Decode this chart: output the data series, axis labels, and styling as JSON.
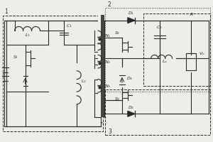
{
  "bg_color": "#eeede8",
  "line_color": "#2a2a2a",
  "figsize": [
    3.0,
    2.0
  ],
  "dpi": 100
}
